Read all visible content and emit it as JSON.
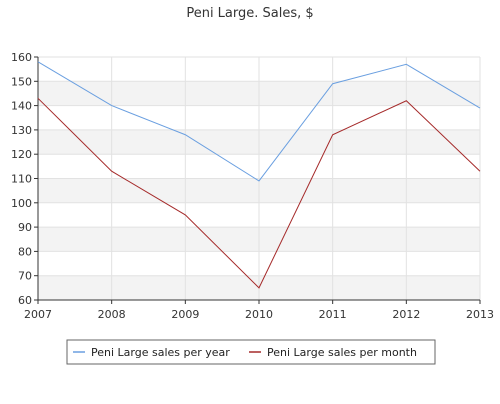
{
  "chart_data": {
    "type": "line",
    "title": "Peni Large. Sales, $",
    "xlabel": "",
    "ylabel": "",
    "categories": [
      "2007",
      "2008",
      "2009",
      "2010",
      "2011",
      "2012",
      "2013"
    ],
    "x": [
      2007,
      2008,
      2009,
      2010,
      2011,
      2012,
      2013
    ],
    "ylim": [
      60,
      160
    ],
    "yticks": [
      60,
      70,
      80,
      90,
      100,
      110,
      120,
      130,
      140,
      150,
      160
    ],
    "grid": true,
    "legend_position": "bottom",
    "series": [
      {
        "name": "Peni Large sales per year",
        "color": "#6a9fe0",
        "values": [
          158,
          140,
          128,
          109,
          149,
          157,
          139
        ]
      },
      {
        "name": "Peni Large sales per month",
        "color": "#a52a2a",
        "values": [
          143,
          113,
          95,
          65,
          128,
          142,
          113
        ]
      }
    ]
  }
}
